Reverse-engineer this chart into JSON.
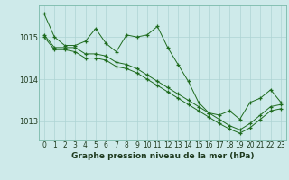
{
  "title": "Graphe pression niveau de la mer (hPa)",
  "background_color": "#ceeaea",
  "grid_color": "#aed4d4",
  "line_color": "#1e6b1e",
  "marker_color": "#1e6b1e",
  "xlim": [
    -0.5,
    23.5
  ],
  "ylim": [
    1012.55,
    1015.75
  ],
  "yticks": [
    1013,
    1014,
    1015
  ],
  "xticks": [
    0,
    1,
    2,
    3,
    4,
    5,
    6,
    7,
    8,
    9,
    10,
    11,
    12,
    13,
    14,
    15,
    16,
    17,
    18,
    19,
    20,
    21,
    22,
    23
  ],
  "series1": [
    1015.55,
    1015.0,
    1014.8,
    1014.8,
    1014.9,
    1015.2,
    1014.85,
    1014.65,
    1015.05,
    1015.0,
    1015.05,
    1015.25,
    1014.75,
    1014.35,
    1013.95,
    1013.45,
    1013.2,
    1013.15,
    1013.25,
    1013.05,
    1013.45,
    1013.55,
    1013.75,
    1013.45
  ],
  "series2": [
    1015.05,
    1014.75,
    1014.75,
    1014.75,
    1014.6,
    1014.6,
    1014.55,
    1014.4,
    1014.35,
    1014.25,
    1014.1,
    1013.95,
    1013.8,
    1013.65,
    1013.5,
    1013.35,
    1013.2,
    1013.05,
    1012.9,
    1012.8,
    1012.95,
    1013.15,
    1013.35,
    1013.4
  ],
  "series3": [
    1015.0,
    1014.7,
    1014.7,
    1014.65,
    1014.5,
    1014.5,
    1014.45,
    1014.3,
    1014.25,
    1014.15,
    1014.0,
    1013.85,
    1013.7,
    1013.55,
    1013.4,
    1013.25,
    1013.1,
    1012.95,
    1012.82,
    1012.72,
    1012.85,
    1013.05,
    1013.25,
    1013.3
  ],
  "tick_fontsize": 5.5,
  "ylabel_fontsize": 6.0,
  "xlabel_fontsize": 6.5,
  "spine_color": "#7abaaa"
}
